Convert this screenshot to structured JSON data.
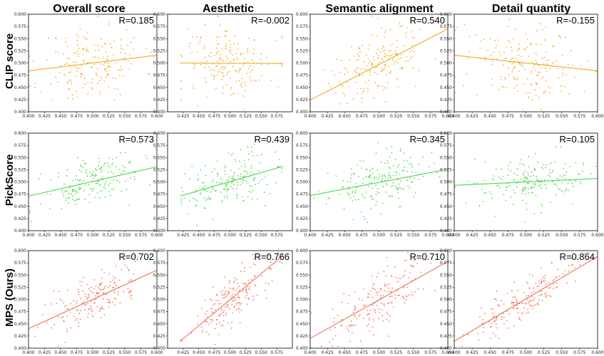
{
  "colors": {
    "clip": "#f5a623",
    "pick": "#4cd84c",
    "mps": "#f0735a"
  },
  "column_titles": [
    "Overall score",
    "Aesthetic",
    "Semantic alignment",
    "Detail quantity"
  ],
  "row_titles": [
    "CLIP score",
    "PickScore",
    "MPS (Ours)"
  ],
  "chart_data": [
    {
      "type": "scatter",
      "row": 0,
      "col": 0,
      "color_key": "clip",
      "annotation": "R=0.185",
      "xlim": [
        0.4,
        0.6
      ],
      "ylim": [
        0.4,
        0.6
      ],
      "seed": 11,
      "xrange": [
        0.4,
        0.6
      ],
      "r": 0.185,
      "sx": 0.04,
      "sy": 0.04,
      "mx": 0.5,
      "my": 0.5,
      "line": [
        [
          0.4,
          0.484
        ],
        [
          0.6,
          0.516
        ]
      ],
      "xticks": [
        0.4,
        0.425,
        0.45,
        0.475,
        0.5,
        0.525,
        0.55,
        0.575,
        0.6
      ],
      "yticks": [
        0.4,
        0.425,
        0.45,
        0.475,
        0.5,
        0.525,
        0.55,
        0.575,
        0.6
      ]
    },
    {
      "type": "scatter",
      "row": 0,
      "col": 1,
      "color_key": "clip",
      "annotation": "R=-0.002",
      "xlim": [
        0.4,
        0.6
      ],
      "ylim": [
        0.4,
        0.6
      ],
      "seed": 12,
      "xrange": [
        0.42,
        0.585
      ],
      "r": -0.002,
      "sx": 0.035,
      "sy": 0.04,
      "mx": 0.5,
      "my": 0.5,
      "line": [
        [
          0.42,
          0.5
        ],
        [
          0.585,
          0.499
        ]
      ],
      "xticks": [
        0.425,
        0.45,
        0.475,
        0.5,
        0.525,
        0.55,
        0.575
      ],
      "yticks": [
        0.4,
        0.425,
        0.45,
        0.475,
        0.5,
        0.525,
        0.55,
        0.575,
        0.6
      ]
    },
    {
      "type": "scatter",
      "row": 0,
      "col": 2,
      "color_key": "clip",
      "annotation": "R=0.540",
      "xlim": [
        0.4,
        0.6
      ],
      "ylim": [
        0.4,
        0.6
      ],
      "seed": 13,
      "xrange": [
        0.4,
        0.6
      ],
      "r": 0.54,
      "sx": 0.035,
      "sy": 0.04,
      "mx": 0.5,
      "my": 0.5,
      "line": [
        [
          0.4,
          0.424
        ],
        [
          0.6,
          0.57
        ]
      ],
      "xticks": [
        0.4,
        0.425,
        0.45,
        0.475,
        0.5,
        0.525,
        0.55,
        0.575,
        0.6
      ],
      "yticks": [
        0.4,
        0.425,
        0.45,
        0.475,
        0.5,
        0.525,
        0.55,
        0.575,
        0.6
      ]
    },
    {
      "type": "scatter",
      "row": 0,
      "col": 3,
      "color_key": "clip",
      "annotation": "R=-0.155",
      "xlim": [
        0.4,
        0.6
      ],
      "ylim": [
        0.4,
        0.6
      ],
      "seed": 14,
      "xrange": [
        0.4,
        0.6
      ],
      "r": -0.155,
      "sx": 0.04,
      "sy": 0.04,
      "mx": 0.5,
      "my": 0.5,
      "line": [
        [
          0.4,
          0.516
        ],
        [
          0.6,
          0.484
        ]
      ],
      "xticks": [
        0.4,
        0.425,
        0.45,
        0.475,
        0.5,
        0.525,
        0.55,
        0.575,
        0.6
      ],
      "yticks": [
        0.4,
        0.425,
        0.45,
        0.475,
        0.5,
        0.525,
        0.55,
        0.575,
        0.6
      ]
    },
    {
      "type": "scatter",
      "row": 1,
      "col": 0,
      "color_key": "pick",
      "annotation": "R=0.573",
      "xlim": [
        0.4,
        0.6
      ],
      "ylim": [
        0.4,
        0.6
      ],
      "seed": 21,
      "xrange": [
        0.4,
        0.6
      ],
      "r": 0.573,
      "sx": 0.04,
      "sy": 0.028,
      "mx": 0.5,
      "my": 0.5,
      "line": [
        [
          0.4,
          0.471
        ],
        [
          0.6,
          0.531
        ]
      ],
      "xticks": [
        0.4,
        0.425,
        0.45,
        0.475,
        0.5,
        0.525,
        0.55,
        0.575,
        0.6
      ],
      "yticks": [
        0.4,
        0.425,
        0.45,
        0.475,
        0.5,
        0.525,
        0.55,
        0.575,
        0.6
      ]
    },
    {
      "type": "scatter",
      "row": 1,
      "col": 1,
      "color_key": "pick",
      "annotation": "R=0.439",
      "xlim": [
        0.4,
        0.6
      ],
      "ylim": [
        0.4,
        0.6
      ],
      "seed": 22,
      "xrange": [
        0.42,
        0.585
      ],
      "r": 0.439,
      "sx": 0.035,
      "sy": 0.028,
      "mx": 0.5,
      "my": 0.5,
      "line": [
        [
          0.42,
          0.471
        ],
        [
          0.585,
          0.532
        ]
      ],
      "xticks": [
        0.425,
        0.45,
        0.475,
        0.5,
        0.525,
        0.55,
        0.575
      ],
      "yticks": [
        0.4,
        0.425,
        0.45,
        0.475,
        0.5,
        0.525,
        0.55,
        0.575,
        0.6
      ]
    },
    {
      "type": "scatter",
      "row": 1,
      "col": 2,
      "color_key": "pick",
      "annotation": "R=0.345",
      "xlim": [
        0.4,
        0.6
      ],
      "ylim": [
        0.4,
        0.6
      ],
      "seed": 23,
      "xrange": [
        0.4,
        0.6
      ],
      "r": 0.345,
      "sx": 0.035,
      "sy": 0.028,
      "mx": 0.5,
      "my": 0.5,
      "line": [
        [
          0.4,
          0.472
        ],
        [
          0.6,
          0.526
        ]
      ],
      "xticks": [
        0.4,
        0.425,
        0.45,
        0.475,
        0.5,
        0.525,
        0.55,
        0.575,
        0.6
      ],
      "yticks": [
        0.4,
        0.425,
        0.45,
        0.475,
        0.5,
        0.525,
        0.55,
        0.575,
        0.6
      ]
    },
    {
      "type": "scatter",
      "row": 1,
      "col": 3,
      "color_key": "pick",
      "annotation": "R=0.105",
      "xlim": [
        0.4,
        0.6
      ],
      "ylim": [
        0.4,
        0.6
      ],
      "seed": 24,
      "xrange": [
        0.4,
        0.6
      ],
      "r": 0.105,
      "sx": 0.04,
      "sy": 0.028,
      "mx": 0.5,
      "my": 0.5,
      "line": [
        [
          0.4,
          0.493
        ],
        [
          0.6,
          0.507
        ]
      ],
      "xticks": [
        0.4,
        0.425,
        0.45,
        0.475,
        0.5,
        0.525,
        0.55,
        0.575,
        0.6
      ],
      "yticks": [
        0.4,
        0.425,
        0.45,
        0.475,
        0.5,
        0.525,
        0.55,
        0.575,
        0.6
      ]
    },
    {
      "type": "scatter",
      "row": 2,
      "col": 0,
      "color_key": "mps",
      "annotation": "R=0.702",
      "xlim": [
        0.4,
        0.6
      ],
      "ylim": [
        0.4,
        0.6
      ],
      "seed": 31,
      "xrange": [
        0.4,
        0.6
      ],
      "r": 0.702,
      "sx": 0.04,
      "sy": 0.035,
      "mx": 0.5,
      "my": 0.5,
      "line": [
        [
          0.4,
          0.44
        ],
        [
          0.6,
          0.56
        ]
      ],
      "xticks": [
        0.4,
        0.425,
        0.45,
        0.475,
        0.5,
        0.525,
        0.55,
        0.575,
        0.6
      ],
      "yticks": [
        0.4,
        0.425,
        0.45,
        0.475,
        0.5,
        0.525,
        0.55,
        0.575,
        0.6
      ]
    },
    {
      "type": "scatter",
      "row": 2,
      "col": 1,
      "color_key": "mps",
      "annotation": "R=0.766",
      "xlim": [
        0.4,
        0.6
      ],
      "ylim": [
        0.4,
        0.6
      ],
      "seed": 32,
      "xrange": [
        0.42,
        0.585
      ],
      "r": 0.766,
      "sx": 0.035,
      "sy": 0.04,
      "mx": 0.5,
      "my": 0.5,
      "line": [
        [
          0.42,
          0.414
        ],
        [
          0.585,
          0.59
        ]
      ],
      "xticks": [
        0.425,
        0.45,
        0.475,
        0.5,
        0.525,
        0.55,
        0.575
      ],
      "yticks": [
        0.4,
        0.425,
        0.45,
        0.475,
        0.5,
        0.525,
        0.55,
        0.575,
        0.6
      ]
    },
    {
      "type": "scatter",
      "row": 2,
      "col": 2,
      "color_key": "mps",
      "annotation": "R=0.710",
      "xlim": [
        0.4,
        0.6
      ],
      "ylim": [
        0.4,
        0.6
      ],
      "seed": 33,
      "xrange": [
        0.4,
        0.6
      ],
      "r": 0.71,
      "sx": 0.035,
      "sy": 0.04,
      "mx": 0.5,
      "my": 0.5,
      "line": [
        [
          0.4,
          0.42
        ],
        [
          0.6,
          0.578
        ]
      ],
      "xticks": [
        0.4,
        0.425,
        0.45,
        0.475,
        0.5,
        0.525,
        0.55,
        0.575,
        0.6
      ],
      "yticks": [
        0.4,
        0.425,
        0.45,
        0.475,
        0.5,
        0.525,
        0.55,
        0.575,
        0.6
      ]
    },
    {
      "type": "scatter",
      "row": 2,
      "col": 3,
      "color_key": "mps",
      "annotation": "R=0.864",
      "xlim": [
        0.4,
        0.6
      ],
      "ylim": [
        0.4,
        0.6
      ],
      "seed": 34,
      "xrange": [
        0.4,
        0.6
      ],
      "r": 0.864,
      "sx": 0.04,
      "sy": 0.04,
      "mx": 0.5,
      "my": 0.5,
      "line": [
        [
          0.4,
          0.414
        ],
        [
          0.6,
          0.588
        ]
      ],
      "xticks": [
        0.4,
        0.425,
        0.45,
        0.475,
        0.5,
        0.525,
        0.55,
        0.575,
        0.6
      ],
      "yticks": [
        0.4,
        0.425,
        0.45,
        0.475,
        0.5,
        0.525,
        0.55,
        0.575,
        0.6
      ]
    }
  ]
}
